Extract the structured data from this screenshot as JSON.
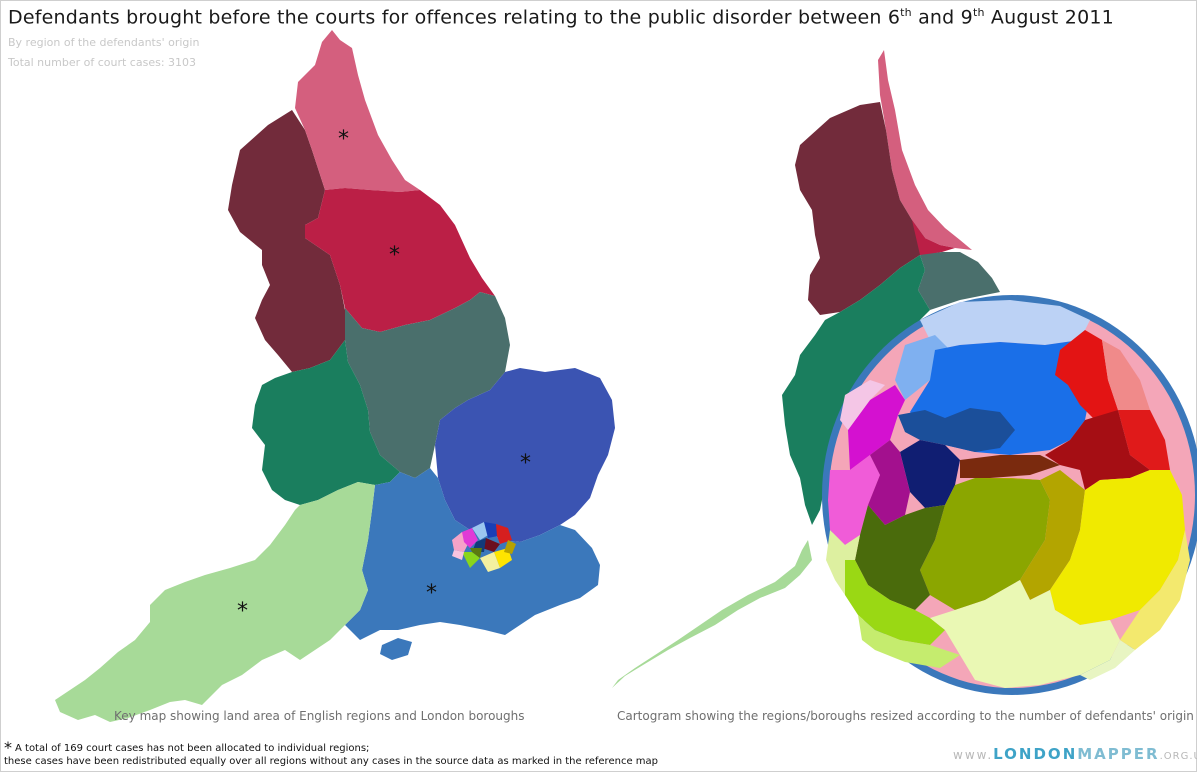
{
  "header": {
    "title_main": "Defendants brought before the courts for offences relating to the public disorder between 6",
    "title_sup1": "th",
    "title_mid": " and 9",
    "title_sup2": "th",
    "title_end": " August 2011",
    "subtitle_1": "By region of the defendants' origin",
    "subtitle_2": "Total number of court cases: 3103"
  },
  "captions": {
    "left": "Key map showing land area of English regions and London boroughs",
    "right": "Cartogram showing the regions/boroughs resized according to the number of defendants' origin"
  },
  "footnote": {
    "star": "*",
    "line_1": "A total of 169 court cases has not been allocated to individual regions;",
    "line_2": "these cases have been redistributed equally over all regions without any cases in the source data as marked in the reference map"
  },
  "branding": {
    "www": "www.",
    "london": "LONDON",
    "mapper": "MAPPER",
    "org": ".ORG.UK"
  },
  "markers": {
    "asterisk": "*"
  },
  "colors": {
    "north_east": "#d45f7e",
    "north_west": "#722b3b",
    "yorkshire": "#bb1f46",
    "east_midlands": "#4a6f6c",
    "west_midlands": "#1a7e5e",
    "east_of_england": "#3b54b2",
    "south_east": "#3b78bb",
    "south_west": "#a7da98",
    "cartogram_outline": "#3b78bb"
  }
}
